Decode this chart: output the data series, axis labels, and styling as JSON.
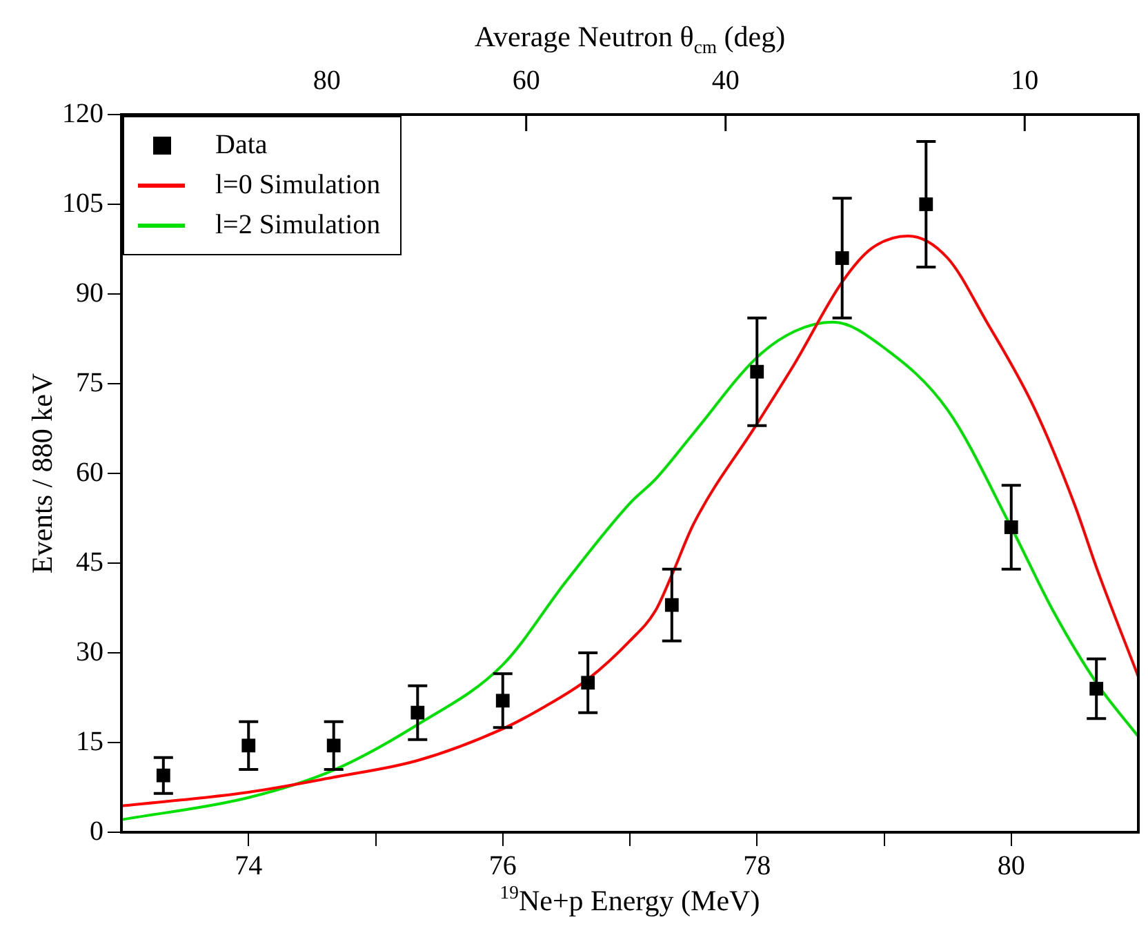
{
  "chart_data": {
    "type": "scatter",
    "xlabel": "$^{19}$Ne+p Energy (MeV)",
    "ylabel": "Events / 880 keV",
    "x2label": "Average Neutron θ$_{cm}$ (deg)",
    "xlim": [
      73,
      81
    ],
    "xticks": [
      74,
      {
        "value": 75,
        "label": null
      },
      76,
      {
        "value": 77,
        "label": null
      },
      78,
      {
        "value": 79,
        "label": null
      },
      80
    ],
    "x2lim": [
      100.6,
      -1.4
    ],
    "x2ticks": [
      80,
      60,
      40,
      10
    ],
    "ylim": [
      0,
      120
    ],
    "yticks": [
      0,
      15,
      30,
      45,
      60,
      75,
      90,
      105,
      120
    ],
    "grid": false,
    "legend": "top left",
    "series": [
      {
        "name": "Data",
        "type": "scatter",
        "marker": "square",
        "color": "#000000",
        "x": [
          73.33,
          74,
          74.67,
          75.33,
          76,
          76.67,
          77.33,
          78,
          78.67,
          79.33,
          80,
          80.67
        ],
        "values": [
          9.5,
          14.5,
          14.5,
          20,
          22,
          25,
          38,
          77,
          96,
          105,
          51,
          24
        ],
        "errors": [
          3,
          4,
          4,
          4.5,
          4.5,
          5,
          6,
          9,
          10,
          10.5,
          7,
          5
        ]
      },
      {
        "name": "l=0 Simulation",
        "type": "line",
        "marker": "none",
        "color": "#ff0000",
        "x": [
          73,
          74,
          74.67,
          75.33,
          76,
          76.33,
          76.67,
          77,
          77.2,
          77.33,
          77.5,
          78,
          78.3,
          78.67,
          78.9,
          79.19,
          79.5,
          79.8,
          80.18,
          80.5,
          80.67,
          81
        ],
        "values": [
          4.4,
          6.7,
          9.2,
          12,
          17.3,
          21,
          25.6,
          32,
          37,
          43,
          51.5,
          68.3,
          78.5,
          92,
          97.6,
          99.7,
          96,
          85.6,
          71,
          54.7,
          44.3,
          26
        ]
      },
      {
        "name": "l=2 Simulation",
        "type": "line",
        "marker": "none",
        "color": "#00e000",
        "x": [
          73,
          74,
          74.67,
          75.33,
          76,
          76.5,
          77,
          77.2,
          77.5,
          78,
          78.3,
          78.6,
          79,
          79.5,
          80,
          80.33,
          80.67,
          81
        ],
        "values": [
          2.1,
          5.8,
          10.4,
          18,
          28,
          42,
          55,
          59,
          66.7,
          79.4,
          83.8,
          85.3,
          81,
          70.6,
          51,
          37,
          25,
          16
        ]
      }
    ]
  }
}
